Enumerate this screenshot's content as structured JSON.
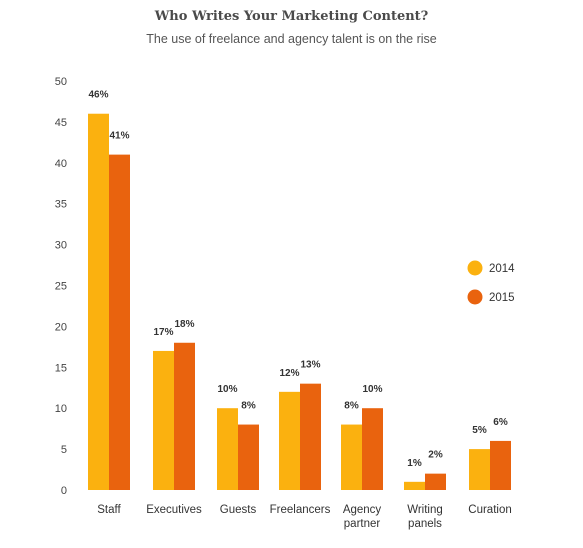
{
  "chart_data": {
    "type": "bar",
    "title": "Who Writes Your Marketing Content?",
    "subtitle": "The use of freelance and agency talent is on the rise",
    "categories": [
      [
        "Staff"
      ],
      [
        "Executives"
      ],
      [
        "Guests"
      ],
      [
        "Freelancers"
      ],
      [
        "Agency",
        "partner"
      ],
      [
        "Writing",
        "panels"
      ],
      [
        "Curation"
      ]
    ],
    "series": [
      {
        "name": "2014",
        "color": "#FBB10F",
        "values": [
          46,
          17,
          10,
          12,
          8,
          1,
          5
        ],
        "labels": [
          "46%",
          "17%",
          "10%",
          "12%",
          "8%",
          "1%",
          "5%"
        ]
      },
      {
        "name": "2015",
        "color": "#E9630E",
        "values": [
          41,
          18,
          8,
          13,
          10,
          2,
          6
        ],
        "labels": [
          "41%",
          "18%",
          "8%",
          "13%",
          "10%",
          "2%",
          "6%"
        ]
      }
    ],
    "ylim": [
      0,
      50
    ],
    "yticks": [
      "0",
      "5",
      "10",
      "15",
      "20",
      "25",
      "30",
      "35",
      "40",
      "45",
      "50"
    ],
    "xlabel": "",
    "ylabel": "",
    "grid": false,
    "legend_position": "right"
  }
}
